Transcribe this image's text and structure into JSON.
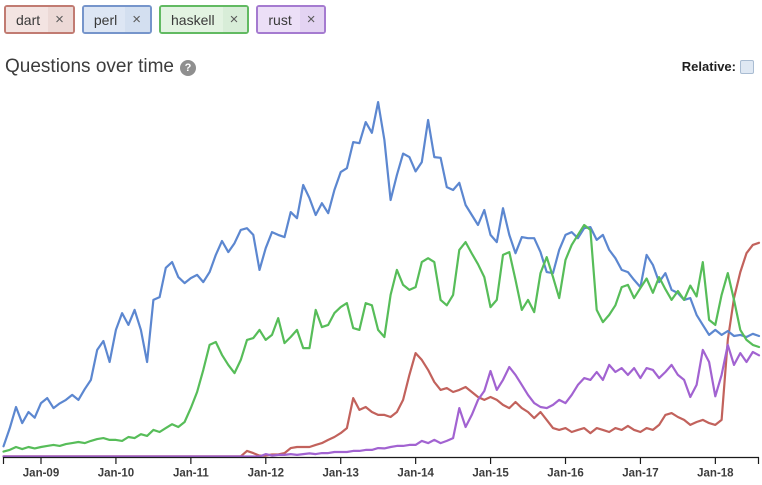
{
  "tags": [
    {
      "id": "dart",
      "label": "dart",
      "remove_icon": "×",
      "border": "#c17b72",
      "label_bg": "#f3e4e2",
      "x_bg": "#ecd9d6"
    },
    {
      "id": "perl",
      "label": "perl",
      "remove_icon": "×",
      "border": "#7695cb",
      "label_bg": "#dde6f4",
      "x_bg": "#d3dff0"
    },
    {
      "id": "haskell",
      "label": "haskell",
      "remove_icon": "×",
      "border": "#62ba62",
      "label_bg": "#e3f3e2",
      "x_bg": "#d8edd8"
    },
    {
      "id": "rust",
      "label": "rust",
      "remove_icon": "×",
      "border": "#a57bd0",
      "label_bg": "#ecdff7",
      "x_bg": "#e3d3f2"
    }
  ],
  "header": {
    "title": "Questions over time",
    "help_icon": "?",
    "relative_label": "Relative:",
    "relative_checked": false
  },
  "chart_data": {
    "type": "line",
    "title": "Questions over time",
    "xlabel": "",
    "ylabel": "",
    "y_axis_shown": false,
    "grid": false,
    "legend_position": "top-left-chips",
    "x_start": "2008-07",
    "x_interval": "month",
    "x_tick_labels": [
      "Jan-09",
      "Jan-10",
      "Jan-11",
      "Jan-12",
      "Jan-13",
      "Jan-14",
      "Jan-15",
      "Jan-16",
      "Jan-17",
      "Jan-18"
    ],
    "ylim": [
      0,
      105
    ],
    "units": "questions per month (relative scale, 100 = peak)",
    "series": [
      {
        "name": "dart",
        "color": "#c2625c",
        "values": [
          0.2,
          0.2,
          0.2,
          0.2,
          0.2,
          0.2,
          0.2,
          0.2,
          0.2,
          0.2,
          0.2,
          0.2,
          0.2,
          0.2,
          0.2,
          0.2,
          0.2,
          0.2,
          0.2,
          0.2,
          0.2,
          0.2,
          0.2,
          0.2,
          0.2,
          0.2,
          0.2,
          0.2,
          0.2,
          0.2,
          0.2,
          0.2,
          0.2,
          0.2,
          0.2,
          0.2,
          0.2,
          0.2,
          0.2,
          1.7,
          1.1,
          0.4,
          0.4,
          0.7,
          0.7,
          1.1,
          2.5,
          2.8,
          2.8,
          2.8,
          3.4,
          3.9,
          4.8,
          5.6,
          6.7,
          8.1,
          16.5,
          13.2,
          14,
          12.6,
          11.8,
          11.8,
          11.2,
          12.6,
          16,
          23,
          29.1,
          27.2,
          24.4,
          21,
          18.8,
          19.3,
          18.2,
          18.8,
          19.6,
          18.2,
          16.8,
          16,
          16.8,
          16,
          14.6,
          13.7,
          15.4,
          13.7,
          12.6,
          10.9,
          12.6,
          10.4,
          8.1,
          7.6,
          8.1,
          7,
          7.6,
          8.1,
          6.7,
          8.1,
          7.6,
          7,
          8.1,
          7.6,
          8.7,
          7.6,
          7,
          8.1,
          7.6,
          9,
          11.8,
          12.3,
          11.2,
          10.4,
          9,
          9.8,
          10.4,
          9.5,
          9,
          10.4,
          32.8,
          44.5,
          51.8,
          57.1,
          59.4,
          60
        ]
      },
      {
        "name": "perl",
        "color": "#5c87d0",
        "values": [
          3,
          8,
          14,
          9.5,
          12.6,
          11,
          15.1,
          16.5,
          13.7,
          15,
          16,
          17.4,
          16,
          19,
          21.6,
          30,
          32.5,
          26.6,
          35.6,
          40.3,
          37,
          41.2,
          35.6,
          26.6,
          44,
          44.8,
          53,
          54.6,
          50.4,
          48.7,
          50.1,
          51,
          49,
          51.8,
          56.6,
          60.5,
          57.4,
          59.9,
          63.6,
          64.1,
          62.2,
          52.4,
          58.5,
          63,
          62.2,
          61.6,
          68.6,
          66.9,
          76.2,
          72.5,
          67.8,
          71.1,
          68.3,
          74.8,
          79.8,
          80.9,
          88.2,
          87.9,
          93.8,
          90.8,
          99.4,
          88.8,
          72,
          79,
          85,
          84,
          80,
          82.6,
          94.4,
          84,
          83.8,
          75.6,
          74.8,
          76.8,
          70.6,
          67.8,
          65,
          69.2,
          62.2,
          60.2,
          69.7,
          62.2,
          57.1,
          61.6,
          61.3,
          61.3,
          57.4,
          51.8,
          51.5,
          58,
          62.2,
          63,
          61.3,
          64.1,
          64.4,
          60.8,
          62.2,
          58,
          55.7,
          52.4,
          51.8,
          49.6,
          47.6,
          56.6,
          53.8,
          49,
          51.5,
          46.8,
          45.9,
          44,
          44.5,
          39.8,
          37,
          34.2,
          35.6,
          34.2,
          35.3,
          33.9,
          34.2,
          33.6,
          34.5,
          33.9
        ]
      },
      {
        "name": "haskell",
        "color": "#57bd59",
        "values": [
          1.5,
          2,
          2.8,
          2.2,
          2.8,
          2.4,
          2.8,
          3.1,
          3.4,
          3.1,
          3.6,
          3.9,
          4.2,
          3.9,
          4.5,
          5,
          5.3,
          4.8,
          4.8,
          4.5,
          5.6,
          5.3,
          6.4,
          5.9,
          7.6,
          7,
          8.1,
          9.2,
          8.4,
          9.8,
          13.7,
          18.2,
          24.4,
          31.4,
          32.2,
          28.6,
          25.8,
          23.5,
          27.2,
          32.8,
          33.3,
          35.6,
          32.8,
          34.2,
          38.9,
          31.9,
          33.6,
          35.6,
          30.5,
          30.5,
          41.2,
          36.4,
          37,
          40.3,
          42,
          43.1,
          36.1,
          35.6,
          43.1,
          42.5,
          35.6,
          33.6,
          45.4,
          52.4,
          48.2,
          46.8,
          47.6,
          54.6,
          55.7,
          54.6,
          44,
          42.5,
          45.4,
          58,
          60.2,
          57,
          54,
          50.4,
          42,
          44,
          56.6,
          57.4,
          49.6,
          41.2,
          44,
          40.6,
          51.5,
          56,
          50.4,
          44.5,
          55.2,
          59.4,
          62.2,
          65,
          63.6,
          41.2,
          37.8,
          39.8,
          42.5,
          47.6,
          48.2,
          44.5,
          47.3,
          50,
          46,
          50.4,
          47,
          44,
          46.5,
          44,
          48,
          45,
          54.6,
          38.4,
          37,
          45.4,
          51.5,
          44,
          35.6,
          32.8,
          31.4,
          30.8
        ]
      },
      {
        "name": "rust",
        "color": "#a263d1",
        "values": [
          0.15,
          0.15,
          0.15,
          0.15,
          0.15,
          0.15,
          0.15,
          0.15,
          0.15,
          0.15,
          0.15,
          0.15,
          0.15,
          0.15,
          0.15,
          0.15,
          0.15,
          0.15,
          0.15,
          0.15,
          0.15,
          0.15,
          0.15,
          0.15,
          0.15,
          0.15,
          0.15,
          0.15,
          0.15,
          0.15,
          0.15,
          0.15,
          0.15,
          0.15,
          0.15,
          0.15,
          0.15,
          0.15,
          0.15,
          0.15,
          0.15,
          0.15,
          0.8,
          0.4,
          0.6,
          0.6,
          0.8,
          0.6,
          0.8,
          1,
          0.8,
          1.1,
          1.1,
          1.4,
          1.4,
          1.4,
          1.7,
          1.7,
          2,
          2,
          2.5,
          2.4,
          2.8,
          3.1,
          3.1,
          3.4,
          3.4,
          4.5,
          3.9,
          4.8,
          3.9,
          4.5,
          5.3,
          13.7,
          8.4,
          11.8,
          16,
          18.5,
          24.1,
          18.8,
          21.6,
          25.2,
          23,
          20.2,
          17.4,
          15.1,
          14,
          13.7,
          14.6,
          16,
          15.1,
          17.4,
          20.2,
          22.1,
          21.6,
          23.8,
          21.6,
          25.8,
          23.8,
          24.9,
          23,
          24.9,
          22.1,
          24.9,
          24.4,
          22.1,
          23.8,
          25.8,
          23,
          21.6,
          16.8,
          20.2,
          30,
          26.6,
          17,
          23,
          31.4,
          25.8,
          29.1,
          26.6,
          29.4,
          28.5
        ]
      }
    ]
  }
}
